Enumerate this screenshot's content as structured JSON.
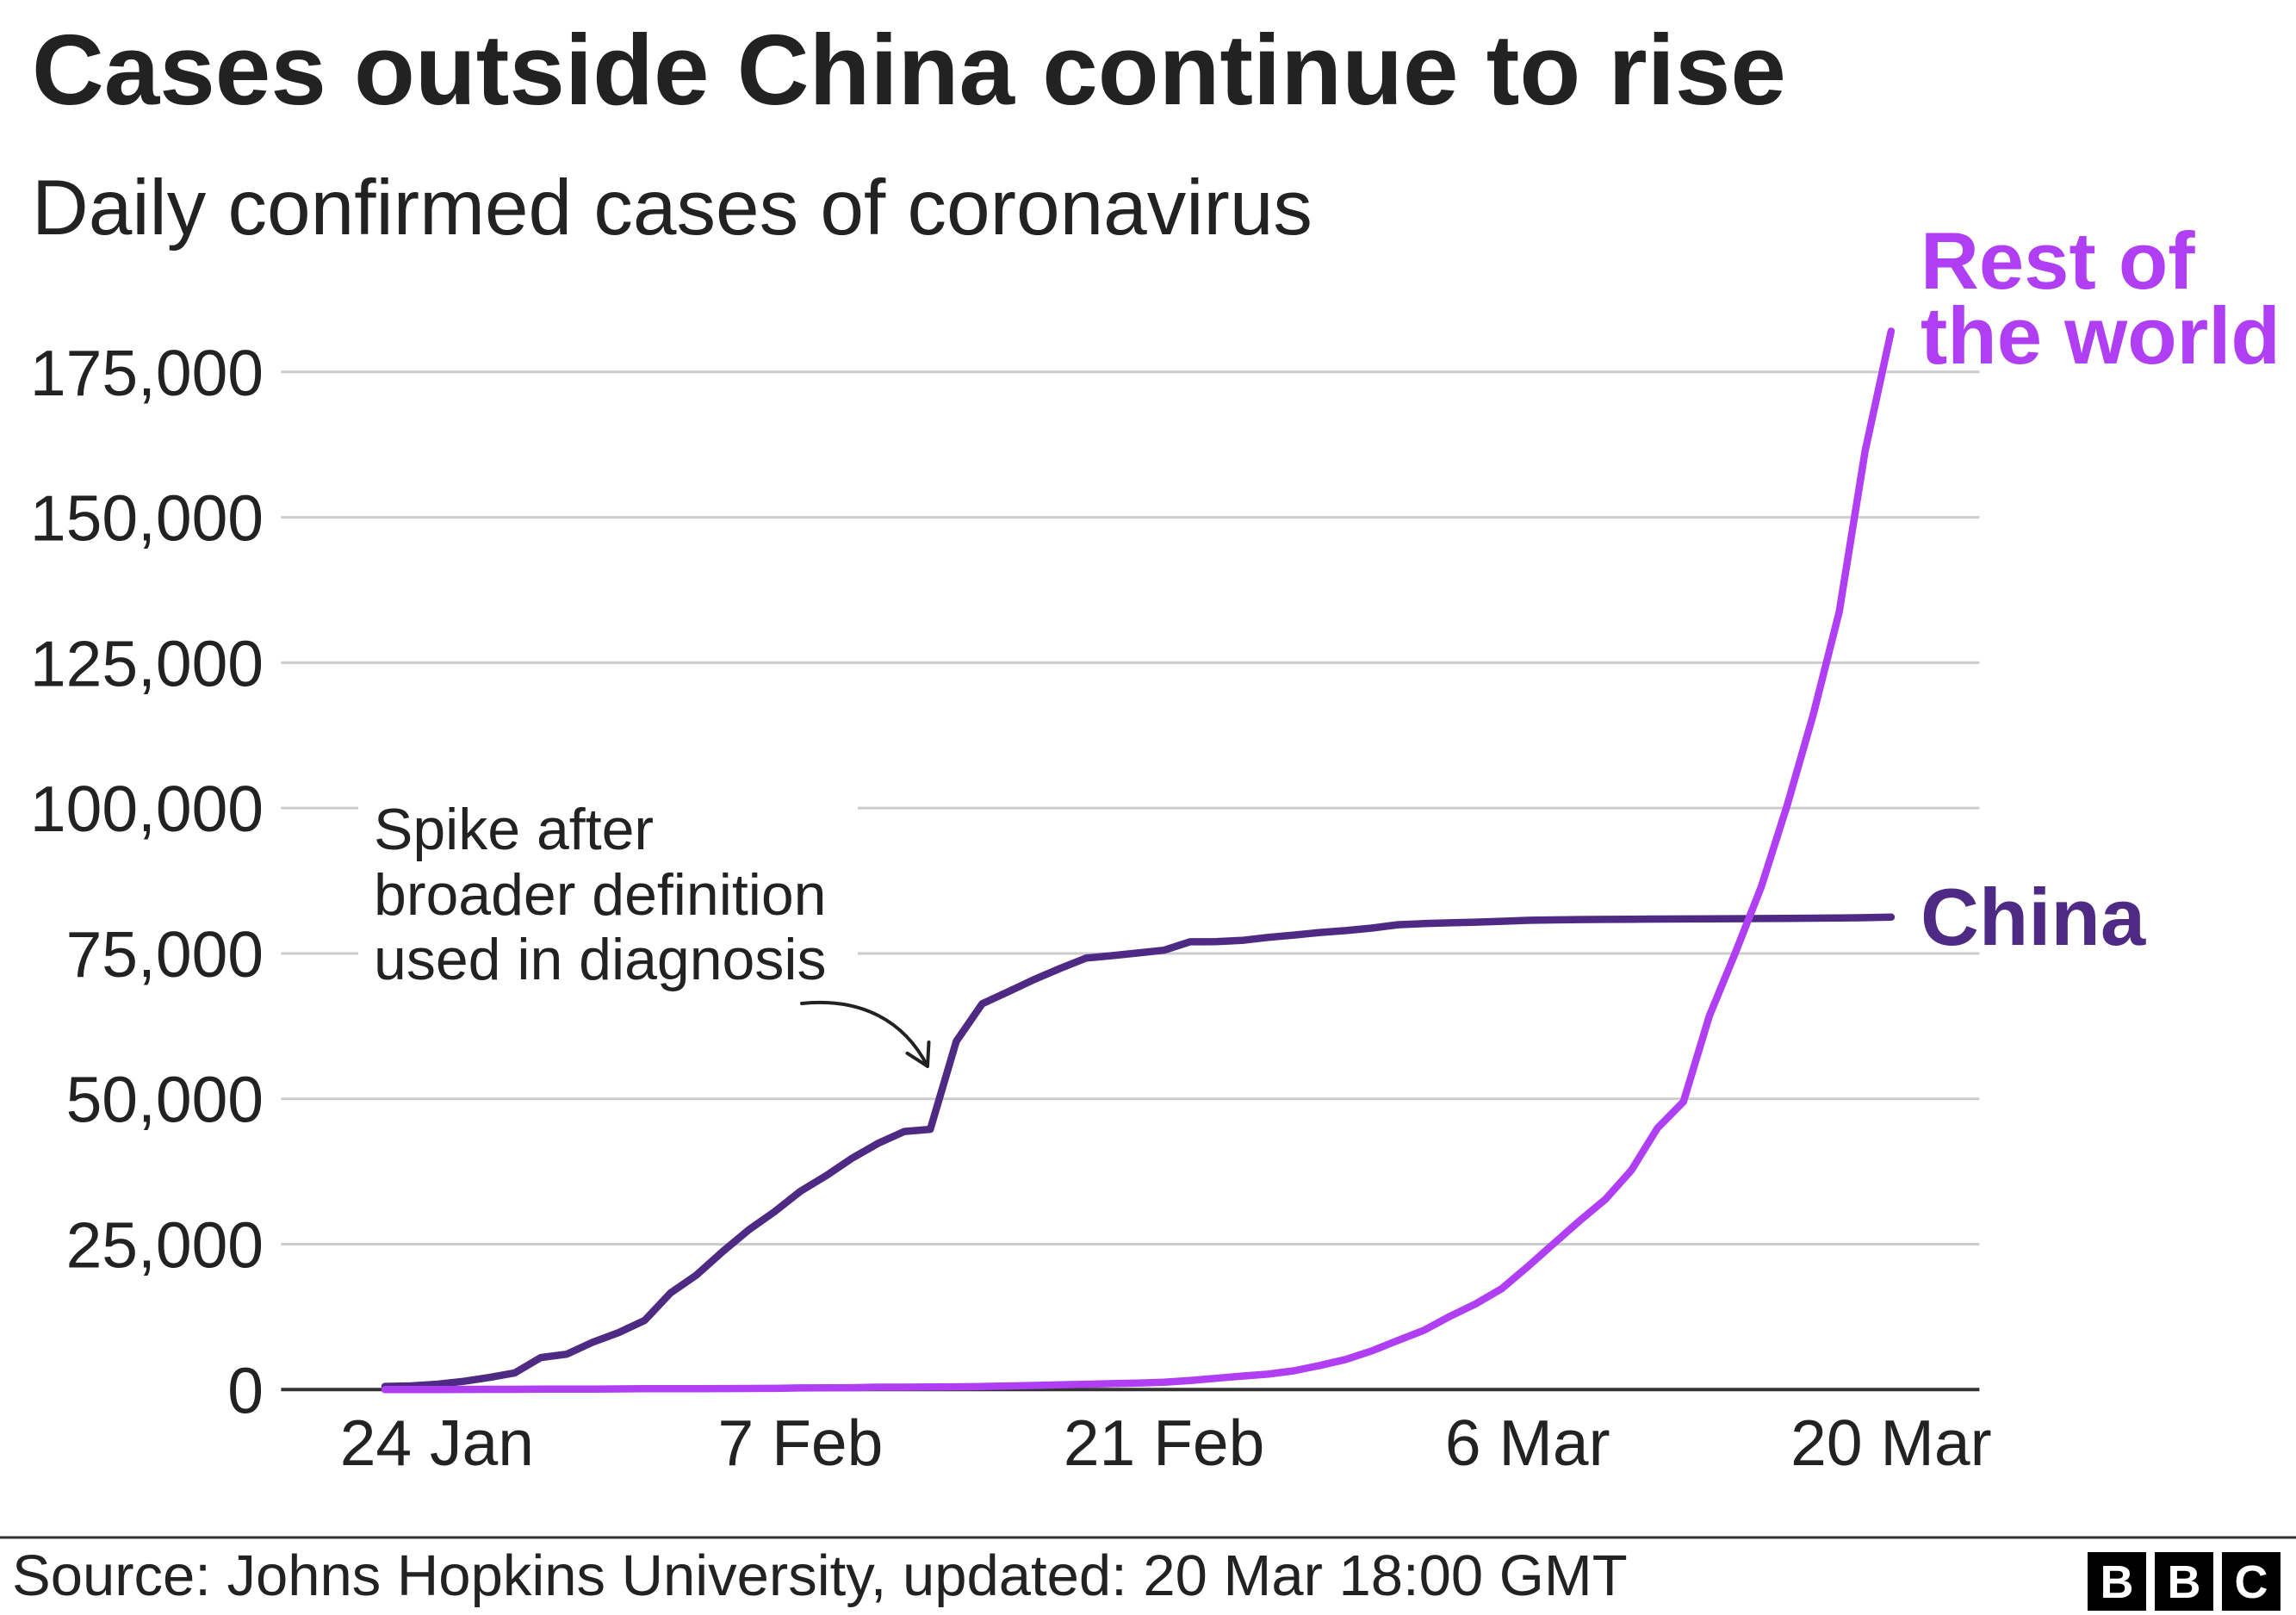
{
  "source": "Source: Johns Hopkins University, updated: 20 Mar 18:00 GMT",
  "logo": {
    "letters": [
      "B",
      "B",
      "C"
    ],
    "color": "#000000"
  },
  "colors": {
    "text": "#222222",
    "grid": "#cccccc",
    "axis": "#333333",
    "arrow": "#222222"
  },
  "chart_data": {
    "type": "line",
    "title": "Cases outside China continue to rise",
    "subtitle": "Daily confirmed cases of coronavirus",
    "xlabel": "",
    "ylabel": "",
    "grid": true,
    "xlim": [
      -6,
      59.4
    ],
    "ylim": [
      0,
      175000
    ],
    "yticks": [
      0,
      25000,
      50000,
      75000,
      100000,
      125000,
      150000,
      175000
    ],
    "ytick_labels": [
      "0",
      "25,000",
      "50,000",
      "75,000",
      "100,000",
      "125,000",
      "150,000",
      "175,000"
    ],
    "xticks": [
      0,
      14,
      28,
      42,
      56
    ],
    "xtick_labels": [
      "24 Jan",
      "7 Feb",
      "21 Feb",
      "6 Mar",
      "20 Mar"
    ],
    "x": [
      -2,
      -1,
      0,
      1,
      2,
      3,
      4,
      5,
      6,
      7,
      8,
      9,
      10,
      11,
      12,
      13,
      14,
      15,
      16,
      17,
      18,
      19,
      20,
      21,
      22,
      23,
      24,
      25,
      26,
      27,
      28,
      29,
      30,
      31,
      32,
      33,
      34,
      35,
      36,
      37,
      38,
      39,
      40,
      41,
      42,
      43,
      44,
      45,
      46,
      47,
      48,
      49,
      50,
      51,
      52,
      53,
      54,
      55,
      56
    ],
    "series": [
      {
        "label_lines": [
          "Rest of",
          "the world"
        ],
        "color": "#b03ef3",
        "values": [
          7,
          10,
          21,
          28,
          43,
          50,
          69,
          79,
          93,
          125,
          147,
          157,
          165,
          185,
          195,
          207,
          281,
          306,
          321,
          408,
          416,
          462,
          473,
          527,
          617,
          711,
          824,
          925,
          1020,
          1120,
          1269,
          1571,
          1936,
          2320,
          2652,
          3222,
          4146,
          5184,
          6655,
          8437,
          10170,
          12579,
          14734,
          17349,
          21111,
          25077,
          28998,
          32730,
          37733,
          44954,
          49500,
          64260,
          75124,
          86451,
          100541,
          116044,
          133719,
          161414,
          182000
        ]
      },
      {
        "label_lines": [
          "China"
        ],
        "color": "#4e2a84",
        "values": [
          548,
          643,
          920,
          1406,
          2075,
          2877,
          5509,
          6087,
          8141,
          9802,
          11891,
          16630,
          19716,
          23707,
          27440,
          30587,
          34110,
          36814,
          39829,
          42354,
          44386,
          44759,
          59895,
          66358,
          68413,
          70513,
          72434,
          74211,
          74619,
          75077,
          75550,
          77001,
          77022,
          77241,
          77754,
          78166,
          78600,
          78928,
          79356,
          79932,
          80136,
          80261,
          80386,
          80537,
          80690,
          80770,
          80823,
          80860,
          80887,
          80921,
          80932,
          80945,
          80977,
          81003,
          81033,
          81058,
          81102,
          81156,
          81250
        ]
      }
    ],
    "annotations": [
      {
        "lines": [
          "Spike after",
          "broader definition",
          "used in diagnosis"
        ]
      }
    ]
  }
}
